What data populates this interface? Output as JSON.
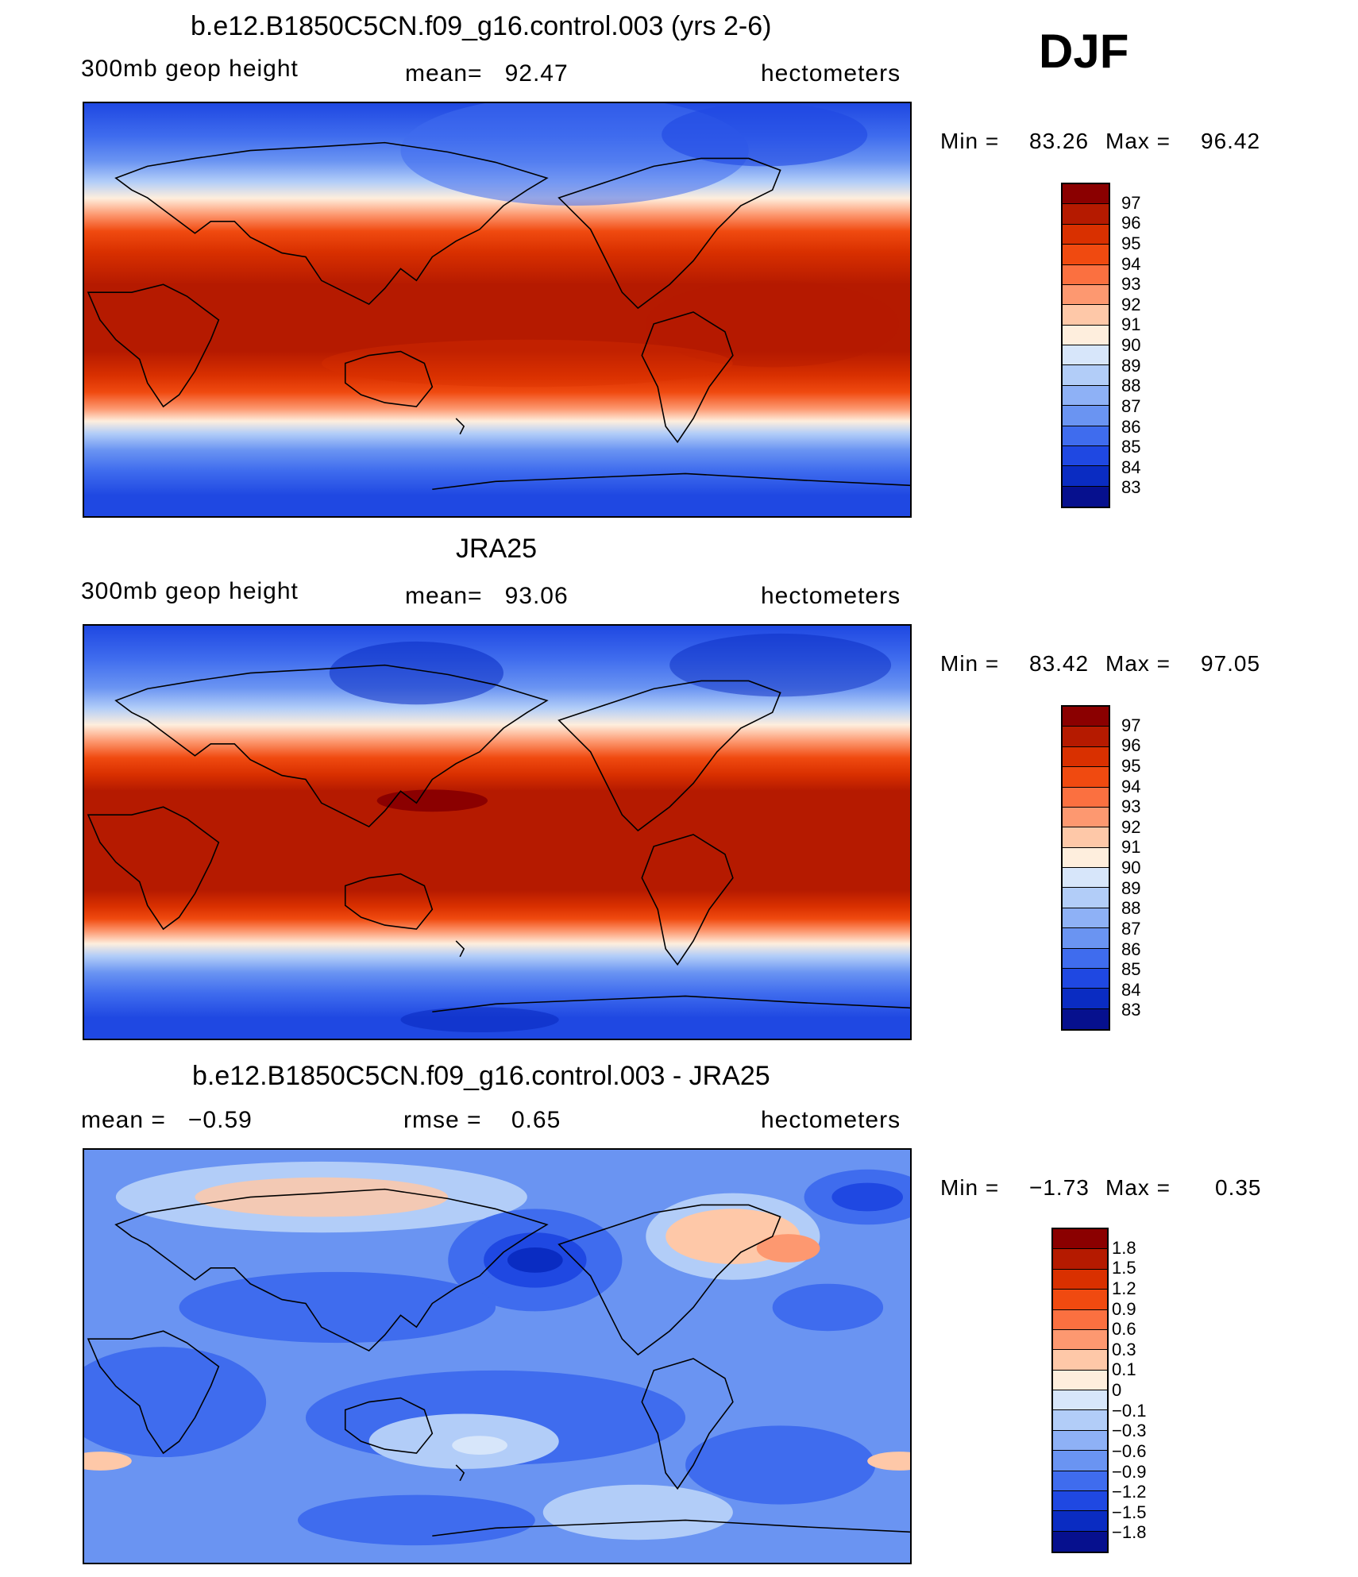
{
  "season": "DJF",
  "panels": [
    {
      "title": "b.e12.B1850C5CN.f09_g16.control.003 (yrs 2-6)",
      "left_label": "300mb geop height",
      "mid_label": "mean=   92.47",
      "right_label": "hectometers",
      "min_label": "Min =",
      "min_value": "83.26",
      "max_label": "Max =",
      "max_value": "96.42",
      "levels": [
        "97",
        "96",
        "95",
        "94",
        "93",
        "92",
        "91",
        "90",
        "89",
        "88",
        "87",
        "86",
        "85",
        "84",
        "83"
      ],
      "colors": [
        "#8b0000",
        "#b51a00",
        "#d93000",
        "#f04a10",
        "#fb7040",
        "#fd9870",
        "#fec8a8",
        "#feeedd",
        "#d7e6fa",
        "#b2cdf8",
        "#8eb1f6",
        "#6a94f2",
        "#3f6cee",
        "#1f48e2",
        "#0a2cc2",
        "#06108e"
      ]
    },
    {
      "title": "JRA25",
      "left_label": "300mb geop height",
      "mid_label": "mean=   93.06",
      "right_label": "hectometers",
      "min_label": "Min =",
      "min_value": "83.42",
      "max_label": "Max =",
      "max_value": "97.05",
      "levels": [
        "97",
        "96",
        "95",
        "94",
        "93",
        "92",
        "91",
        "90",
        "89",
        "88",
        "87",
        "86",
        "85",
        "84",
        "83"
      ],
      "colors": [
        "#8b0000",
        "#b51a00",
        "#d93000",
        "#f04a10",
        "#fb7040",
        "#fd9870",
        "#fec8a8",
        "#feeedd",
        "#d7e6fa",
        "#b2cdf8",
        "#8eb1f6",
        "#6a94f2",
        "#3f6cee",
        "#1f48e2",
        "#0a2cc2",
        "#06108e"
      ]
    },
    {
      "title": "b.e12.B1850C5CN.f09_g16.control.003 - JRA25",
      "left_label": "mean =   −0.59",
      "mid_label": "rmse =    0.65",
      "right_label": "hectometers",
      "min_label": "Min =",
      "min_value": "−1.73",
      "max_label": "Max =",
      "max_value": "0.35",
      "levels": [
        "1.8",
        "1.5",
        "1.2",
        "0.9",
        "0.6",
        "0.3",
        "0.1",
        "0",
        "−0.1",
        "−0.3",
        "−0.6",
        "−0.9",
        "−1.2",
        "−1.5",
        "−1.8"
      ],
      "colors": [
        "#8b0000",
        "#b51a00",
        "#d93000",
        "#f04a10",
        "#fb7040",
        "#fd9870",
        "#fec8a8",
        "#feeedd",
        "#d7e6fa",
        "#b2cdf8",
        "#8eb1f6",
        "#6a94f2",
        "#3f6cee",
        "#1f48e2",
        "#0a2cc2",
        "#06108e"
      ]
    }
  ]
}
